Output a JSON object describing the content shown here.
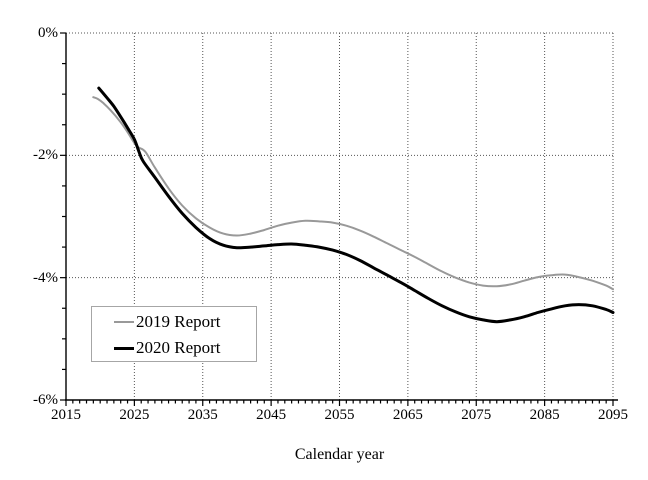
{
  "figure": {
    "background_color": "#ffffff",
    "axis_color": "#000000",
    "gridline_color": "#555555"
  },
  "chart_data": {
    "type": "line",
    "title": "",
    "xlabel": "Calendar year",
    "ylabel": "",
    "xlim": [
      2015,
      2095
    ],
    "ylim": [
      -6,
      0
    ],
    "x_tick_values": [
      2015,
      2025,
      2035,
      2045,
      2055,
      2065,
      2075,
      2085,
      2095
    ],
    "x_tick_labels": [
      "2015",
      "2025",
      "2035",
      "2045",
      "2055",
      "2065",
      "2075",
      "2085",
      "2095"
    ],
    "y_tick_values": [
      0,
      -2,
      -4,
      -6
    ],
    "y_tick_labels": [
      "0%",
      "-2%",
      "-4%",
      "-6%"
    ],
    "x_minor_tick_step": 1,
    "y_minor_tick_step": 0.5,
    "grid": {
      "show": true,
      "style": "dotted",
      "color": "#555555"
    },
    "legend": {
      "position": "lower-left-inside",
      "border_color": "#a6a6a6"
    },
    "series": [
      {
        "name": "2019 Report",
        "color": "#999999",
        "stroke_width": 2,
        "points": [
          [
            2019,
            -1.05
          ],
          [
            2019.7,
            -1.08
          ],
          [
            2020.5,
            -1.15
          ],
          [
            2021.5,
            -1.26
          ],
          [
            2023,
            -1.46
          ],
          [
            2024,
            -1.62
          ],
          [
            2025,
            -1.8
          ],
          [
            2025.6,
            -1.87
          ],
          [
            2026.6,
            -1.94
          ],
          [
            2028,
            -2.2
          ],
          [
            2030,
            -2.54
          ],
          [
            2032,
            -2.82
          ],
          [
            2034,
            -3.03
          ],
          [
            2036,
            -3.18
          ],
          [
            2038,
            -3.28
          ],
          [
            2040,
            -3.31
          ],
          [
            2042,
            -3.28
          ],
          [
            2044,
            -3.22
          ],
          [
            2046,
            -3.15
          ],
          [
            2048,
            -3.1
          ],
          [
            2050,
            -3.07
          ],
          [
            2052,
            -3.08
          ],
          [
            2054,
            -3.1
          ],
          [
            2056,
            -3.15
          ],
          [
            2058,
            -3.23
          ],
          [
            2060,
            -3.33
          ],
          [
            2062,
            -3.44
          ],
          [
            2064,
            -3.55
          ],
          [
            2066,
            -3.66
          ],
          [
            2068,
            -3.78
          ],
          [
            2070,
            -3.9
          ],
          [
            2072,
            -4.0
          ],
          [
            2074,
            -4.08
          ],
          [
            2076,
            -4.13
          ],
          [
            2078,
            -4.14
          ],
          [
            2080,
            -4.11
          ],
          [
            2082,
            -4.05
          ],
          [
            2084,
            -3.99
          ],
          [
            2086,
            -3.96
          ],
          [
            2088,
            -3.95
          ],
          [
            2090,
            -3.99
          ],
          [
            2092,
            -4.05
          ],
          [
            2094,
            -4.13
          ],
          [
            2095,
            -4.19
          ]
        ]
      },
      {
        "name": "2020 Report",
        "color": "#000000",
        "stroke_width": 3,
        "points": [
          [
            2019.8,
            -0.9
          ],
          [
            2021,
            -1.06
          ],
          [
            2022,
            -1.2
          ],
          [
            2023,
            -1.37
          ],
          [
            2024,
            -1.55
          ],
          [
            2025,
            -1.74
          ],
          [
            2025.7,
            -1.95
          ],
          [
            2026.3,
            -2.1
          ],
          [
            2028,
            -2.36
          ],
          [
            2030,
            -2.67
          ],
          [
            2032,
            -2.95
          ],
          [
            2034,
            -3.18
          ],
          [
            2036,
            -3.36
          ],
          [
            2038,
            -3.47
          ],
          [
            2040,
            -3.51
          ],
          [
            2042,
            -3.5
          ],
          [
            2044,
            -3.48
          ],
          [
            2046,
            -3.46
          ],
          [
            2048,
            -3.45
          ],
          [
            2050,
            -3.47
          ],
          [
            2052,
            -3.5
          ],
          [
            2054,
            -3.55
          ],
          [
            2056,
            -3.62
          ],
          [
            2058,
            -3.72
          ],
          [
            2060,
            -3.84
          ],
          [
            2062,
            -3.96
          ],
          [
            2064,
            -4.08
          ],
          [
            2066,
            -4.21
          ],
          [
            2068,
            -4.34
          ],
          [
            2070,
            -4.46
          ],
          [
            2072,
            -4.56
          ],
          [
            2074,
            -4.64
          ],
          [
            2076,
            -4.69
          ],
          [
            2078,
            -4.72
          ],
          [
            2080,
            -4.69
          ],
          [
            2082,
            -4.64
          ],
          [
            2084,
            -4.57
          ],
          [
            2086,
            -4.51
          ],
          [
            2088,
            -4.46
          ],
          [
            2090,
            -4.44
          ],
          [
            2092,
            -4.46
          ],
          [
            2094,
            -4.52
          ],
          [
            2095,
            -4.57
          ]
        ]
      }
    ]
  }
}
